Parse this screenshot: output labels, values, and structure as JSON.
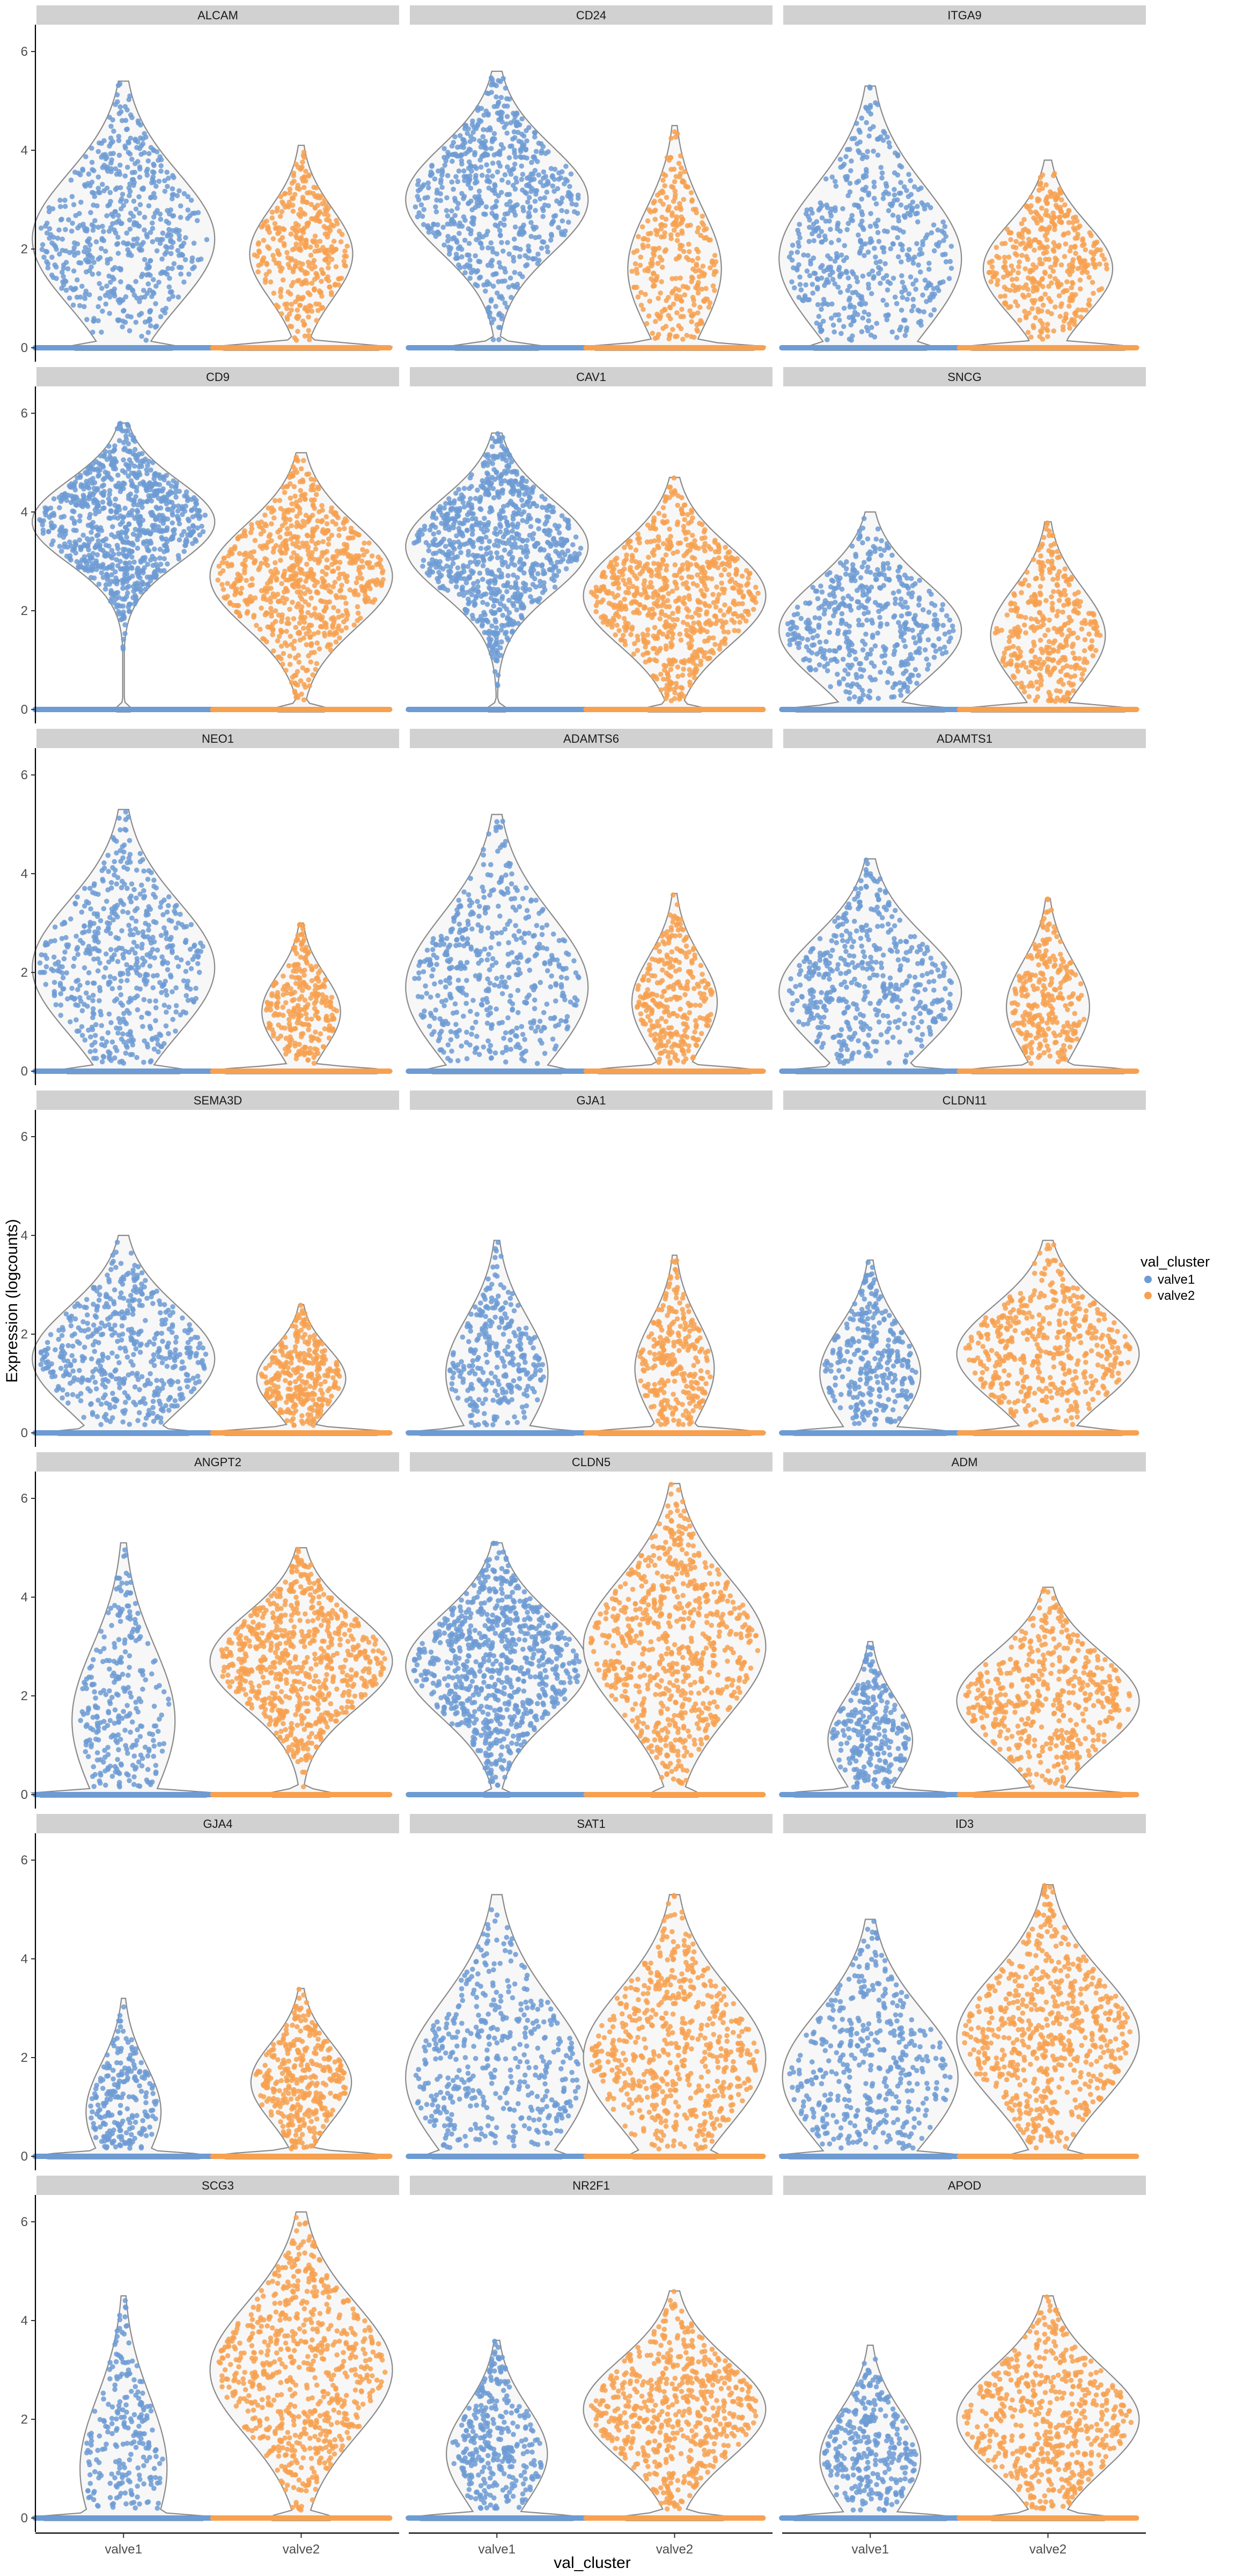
{
  "chart_data": {
    "type": "violin",
    "x_axis_title": "val_cluster",
    "y_axis_title": "Expression (logcounts)",
    "categories": [
      "valve1",
      "valve2"
    ],
    "y_ticks": [
      0,
      2,
      4,
      6
    ],
    "ylim": [
      0,
      6.5
    ],
    "legend": {
      "title": "val_cluster",
      "position": "right",
      "entries": [
        {
          "label": "valve1",
          "color": "#6d9bd3"
        },
        {
          "label": "valve2",
          "color": "#f7a150"
        }
      ]
    },
    "layout": {
      "rows": 7,
      "columns": 3,
      "facet_order": "row-major"
    },
    "panels": [
      {
        "gene": "ALCAM",
        "valve1": {
          "max": 5.4,
          "median": 2.2,
          "pct_zero": 0.45
        },
        "valve2": {
          "max": 4.1,
          "median": 1.9,
          "pct_zero": 0.85
        }
      },
      {
        "gene": "CD24",
        "valve1": {
          "max": 5.6,
          "median": 3.0,
          "pct_zero": 0.4
        },
        "valve2": {
          "max": 4.5,
          "median": 1.6,
          "pct_zero": 0.9
        }
      },
      {
        "gene": "ITGA9",
        "valve1": {
          "max": 5.3,
          "median": 1.8,
          "pct_zero": 0.5
        },
        "valve2": {
          "max": 3.8,
          "median": 1.6,
          "pct_zero": 0.75
        }
      },
      {
        "gene": "CD9",
        "valve1": {
          "max": 5.8,
          "median": 3.8,
          "pct_zero": 0.08
        },
        "valve2": {
          "max": 5.2,
          "median": 2.7,
          "pct_zero": 0.25
        }
      },
      {
        "gene": "CAV1",
        "valve1": {
          "max": 5.6,
          "median": 3.3,
          "pct_zero": 0.1
        },
        "valve2": {
          "max": 4.7,
          "median": 2.3,
          "pct_zero": 0.28
        }
      },
      {
        "gene": "SNCG",
        "valve1": {
          "max": 4.0,
          "median": 1.6,
          "pct_zero": 0.6
        },
        "valve2": {
          "max": 3.8,
          "median": 1.5,
          "pct_zero": 0.8
        }
      },
      {
        "gene": "NEO1",
        "valve1": {
          "max": 5.3,
          "median": 2.1,
          "pct_zero": 0.5
        },
        "valve2": {
          "max": 3.0,
          "median": 1.2,
          "pct_zero": 0.95
        }
      },
      {
        "gene": "ADAMTS6",
        "valve1": {
          "max": 5.2,
          "median": 1.7,
          "pct_zero": 0.55
        },
        "valve2": {
          "max": 3.6,
          "median": 1.4,
          "pct_zero": 0.92
        }
      },
      {
        "gene": "ADAMTS1",
        "valve1": {
          "max": 4.3,
          "median": 1.6,
          "pct_zero": 0.6
        },
        "valve2": {
          "max": 3.5,
          "median": 1.3,
          "pct_zero": 0.93
        }
      },
      {
        "gene": "SEMA3D",
        "valve1": {
          "max": 4.0,
          "median": 1.5,
          "pct_zero": 0.55
        },
        "valve2": {
          "max": 2.6,
          "median": 1.1,
          "pct_zero": 0.9
        }
      },
      {
        "gene": "GJA1",
        "valve1": {
          "max": 3.9,
          "median": 1.2,
          "pct_zero": 0.85
        },
        "valve2": {
          "max": 3.6,
          "median": 1.3,
          "pct_zero": 0.95
        }
      },
      {
        "gene": "CLDN11",
        "valve1": {
          "max": 3.5,
          "median": 1.2,
          "pct_zero": 0.85
        },
        "valve2": {
          "max": 3.9,
          "median": 1.6,
          "pct_zero": 0.6
        }
      },
      {
        "gene": "ANGPT2",
        "valve1": {
          "max": 5.1,
          "median": 1.5,
          "pct_zero": 0.88
        },
        "valve2": {
          "max": 5.0,
          "median": 2.7,
          "pct_zero": 0.3
        }
      },
      {
        "gene": "CLDN5",
        "valve1": {
          "max": 5.1,
          "median": 2.6,
          "pct_zero": 0.15
        },
        "valve2": {
          "max": 6.3,
          "median": 3.0,
          "pct_zero": 0.25
        }
      },
      {
        "gene": "ADM",
        "valve1": {
          "max": 3.1,
          "median": 1.1,
          "pct_zero": 0.92
        },
        "valve2": {
          "max": 4.2,
          "median": 1.9,
          "pct_zero": 0.6
        }
      },
      {
        "gene": "GJA4",
        "valve1": {
          "max": 3.2,
          "median": 0.9,
          "pct_zero": 0.97
        },
        "valve2": {
          "max": 3.4,
          "median": 1.5,
          "pct_zero": 0.85
        }
      },
      {
        "gene": "SAT1",
        "valve1": {
          "max": 5.3,
          "median": 1.6,
          "pct_zero": 0.55
        },
        "valve2": {
          "max": 5.3,
          "median": 2.0,
          "pct_zero": 0.4
        }
      },
      {
        "gene": "ID3",
        "valve1": {
          "max": 4.8,
          "median": 1.6,
          "pct_zero": 0.65
        },
        "valve2": {
          "max": 5.5,
          "median": 2.4,
          "pct_zero": 0.35
        }
      },
      {
        "gene": "SCG3",
        "valve1": {
          "max": 4.5,
          "median": 1.0,
          "pct_zero": 0.93
        },
        "valve2": {
          "max": 6.2,
          "median": 3.0,
          "pct_zero": 0.3
        }
      },
      {
        "gene": "NR2F1",
        "valve1": {
          "max": 3.6,
          "median": 1.3,
          "pct_zero": 0.85
        },
        "valve2": {
          "max": 4.6,
          "median": 2.2,
          "pct_zero": 0.45
        }
      },
      {
        "gene": "APOD",
        "valve1": {
          "max": 3.5,
          "median": 1.2,
          "pct_zero": 0.85
        },
        "valve2": {
          "max": 4.5,
          "median": 2.0,
          "pct_zero": 0.5
        }
      }
    ]
  }
}
